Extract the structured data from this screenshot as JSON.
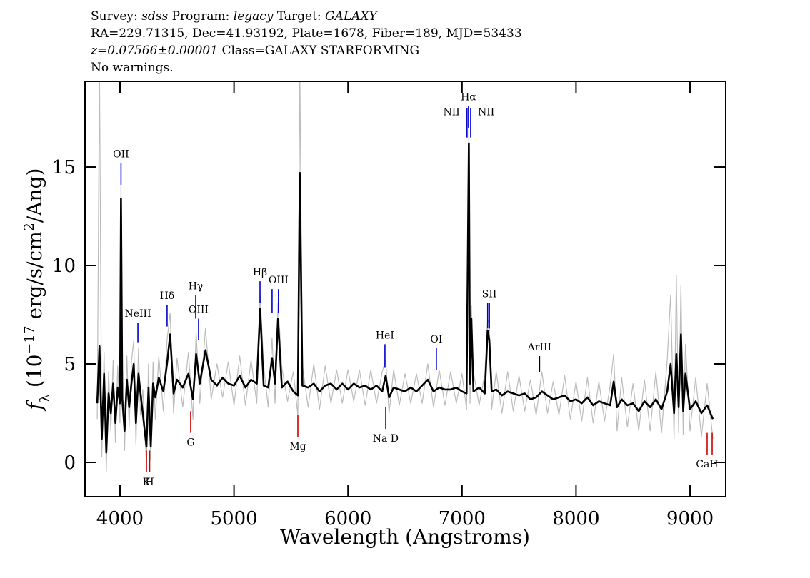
{
  "chart_data": {
    "type": "line",
    "header_lines": [
      [
        {
          "text": "Survey: "
        },
        {
          "text": "sdss",
          "italic": true
        },
        {
          "text": " Program: "
        },
        {
          "text": "legacy",
          "italic": true
        },
        {
          "text": " Target: "
        },
        {
          "text": "GALAXY",
          "italic": true
        }
      ],
      [
        {
          "text": "RA=229.71315, Dec=41.93192, Plate=1678, Fiber=189, MJD=53433"
        }
      ],
      [
        {
          "text": "z=0.07566±0.00001",
          "italic": true
        },
        {
          "text": " Class=GALAXY STARFORMING"
        }
      ],
      [
        {
          "text": "No warnings."
        }
      ]
    ],
    "x_label": "Wavelength (Angstroms)",
    "y_label": [
      {
        "text": "f",
        "italic": true
      },
      {
        "text": "λ",
        "sub": true
      },
      {
        "text": " (10"
      },
      {
        "text": "−17",
        "sup": true
      },
      {
        "text": " erg/s/cm"
      },
      {
        "text": "2",
        "sup": true
      },
      {
        "text": "/Ang)"
      }
    ],
    "xlim": [
      3693,
      9313
    ],
    "ylim": [
      -1.74,
      19.35
    ],
    "xticks": [
      4000,
      5000,
      6000,
      7000,
      8000,
      9000
    ],
    "yticks": [
      0,
      5,
      10,
      15
    ],
    "x": [
      3800,
      3820,
      3840,
      3860,
      3880,
      3900,
      3920,
      3940,
      3960,
      3980,
      4000,
      4009,
      4020,
      4040,
      4060,
      4080,
      4100,
      4120,
      4140,
      4162,
      4180,
      4200,
      4232,
      4250,
      4270,
      4290,
      4310,
      4340,
      4380,
      4412,
      4440,
      4470,
      4500,
      4550,
      4600,
      4640,
      4668,
      4700,
      4750,
      4800,
      4850,
      4900,
      4950,
      5000,
      5050,
      5100,
      5150,
      5200,
      5229,
      5260,
      5300,
      5334,
      5360,
      5386,
      5420,
      5470,
      5520,
      5560,
      5577,
      5600,
      5650,
      5700,
      5750,
      5800,
      5850,
      5900,
      5950,
      6000,
      6050,
      6100,
      6150,
      6200,
      6250,
      6300,
      6330,
      6360,
      6400,
      6450,
      6500,
      6550,
      6600,
      6650,
      6700,
      6750,
      6800,
      6850,
      6900,
      6950,
      7000,
      7040,
      7060,
      7070,
      7082,
      7100,
      7150,
      7200,
      7225,
      7240,
      7260,
      7300,
      7350,
      7400,
      7450,
      7500,
      7550,
      7600,
      7650,
      7700,
      7750,
      7800,
      7850,
      7900,
      7950,
      8000,
      8050,
      8100,
      8150,
      8200,
      8250,
      8300,
      8330,
      8360,
      8400,
      8450,
      8500,
      8550,
      8600,
      8650,
      8700,
      8750,
      8800,
      8830,
      8860,
      8880,
      8900,
      8920,
      8940,
      8960,
      9000,
      9050,
      9100,
      9150,
      9200
    ],
    "series": [
      {
        "color": "#bbbbbb",
        "values": [
          2.2,
          20,
          0.3,
          5.6,
          -0.5,
          4.6,
          1.6,
          5.2,
          1.0,
          4.9,
          2.0,
          14.2,
          4.4,
          0.6,
          5.4,
          1.8,
          5.1,
          6.2,
          0.9,
          5.8,
          2.4,
          3.7,
          0.0,
          5.0,
          0.1,
          5.1,
          2.2,
          5.4,
          2.6,
          6.2,
          7.6,
          2.5,
          5.3,
          2.8,
          5.6,
          2.2,
          6.6,
          3.0,
          6.8,
          3.2,
          5.0,
          3.3,
          5.1,
          2.9,
          5.4,
          2.9,
          5.2,
          3.0,
          8.6,
          4.9,
          2.8,
          6.3,
          3.0,
          8.1,
          4.8,
          3.1,
          4.6,
          2.4,
          20,
          4.9,
          2.8,
          5.0,
          2.7,
          4.9,
          3.0,
          4.7,
          3.0,
          4.7,
          3.1,
          4.7,
          2.9,
          4.7,
          3.0,
          4.6,
          5.2,
          2.5,
          4.7,
          2.9,
          4.5,
          3.0,
          4.5,
          3.0,
          5.0,
          2.8,
          4.7,
          2.9,
          4.6,
          3.0,
          4.5,
          2.7,
          17.0,
          3.0,
          8.0,
          4.6,
          2.9,
          4.5,
          7.3,
          7.0,
          2.7,
          4.6,
          2.5,
          4.6,
          2.6,
          4.4,
          2.6,
          4.2,
          2.4,
          4.6,
          2.5,
          4.1,
          2.4,
          4.4,
          2.2,
          4.1,
          2.1,
          4.3,
          2.0,
          4.1,
          2.1,
          3.9,
          5.5,
          1.6,
          4.3,
          1.8,
          4.0,
          1.6,
          4.2,
          1.6,
          4.6,
          1.5,
          5.2,
          8.5,
          1.2,
          9.5,
          1.5,
          9.0,
          1.4,
          6.0,
          1.6,
          4.3,
          1.3,
          4.0,
          1.2
        ]
      },
      {
        "color": "#000000",
        "values": [
          3.0,
          5.9,
          1.2,
          4.5,
          0.5,
          3.5,
          2.5,
          4.0,
          2.0,
          3.8,
          3.0,
          13.4,
          3.2,
          1.6,
          4.2,
          2.8,
          4.0,
          5.0,
          2.0,
          4.5,
          3.5,
          2.5,
          0.8,
          3.8,
          0.8,
          4.0,
          3.3,
          4.3,
          3.6,
          5.0,
          6.5,
          3.5,
          4.2,
          3.8,
          4.5,
          3.2,
          5.5,
          4.0,
          5.7,
          4.2,
          3.9,
          4.3,
          4.0,
          3.9,
          4.4,
          3.8,
          4.2,
          4.0,
          7.8,
          3.9,
          3.8,
          5.3,
          4.0,
          7.3,
          3.8,
          4.1,
          3.6,
          3.4,
          14.7,
          3.9,
          3.8,
          4.0,
          3.6,
          3.9,
          4.0,
          3.7,
          4.0,
          3.7,
          4.0,
          3.8,
          3.9,
          3.7,
          3.9,
          3.6,
          4.4,
          3.3,
          3.8,
          3.7,
          3.6,
          3.8,
          3.6,
          3.9,
          4.2,
          3.6,
          3.8,
          3.7,
          3.7,
          3.8,
          3.6,
          3.5,
          16.2,
          4.0,
          7.3,
          3.6,
          3.8,
          3.5,
          6.7,
          6.2,
          3.6,
          3.7,
          3.4,
          3.6,
          3.5,
          3.4,
          3.5,
          3.2,
          3.3,
          3.6,
          3.4,
          3.2,
          3.3,
          3.4,
          3.1,
          3.2,
          3.0,
          3.3,
          2.9,
          3.1,
          3.0,
          2.9,
          4.1,
          2.8,
          3.2,
          2.9,
          3.0,
          2.6,
          3.1,
          2.8,
          3.2,
          2.7,
          3.6,
          5.0,
          2.5,
          5.5,
          2.8,
          6.5,
          2.6,
          4.5,
          2.7,
          3.1,
          2.5,
          2.9,
          2.2
        ]
      }
    ],
    "annotations": [
      {
        "label": "OII",
        "x": 4009,
        "y": [
          14.1,
          15.2
        ],
        "color": "#0000cc",
        "side": "above"
      },
      {
        "label": "NeIII",
        "x": 4157,
        "y": [
          6.1,
          7.1
        ],
        "color": "#0000cc",
        "side": "above"
      },
      {
        "label": "Hδ",
        "x": 4413,
        "y": [
          6.9,
          8.0
        ],
        "color": "#0000cc",
        "side": "above"
      },
      {
        "label": "Hγ",
        "x": 4664,
        "y": [
          7.3,
          8.5
        ],
        "color": "#0000cc",
        "side": "above"
      },
      {
        "label": "OIII",
        "x": 4689,
        "y": [
          6.2,
          7.3
        ],
        "color": "#0000cc",
        "side": "above"
      },
      {
        "label": "Hβ",
        "x": 5228,
        "y": [
          8.1,
          9.2
        ],
        "color": "#0000cc",
        "side": "above"
      },
      {
        "x": 5334,
        "y": [
          7.6,
          8.8
        ],
        "color": "#0000cc",
        "side": "above"
      },
      {
        "label": "OIII",
        "x": 5390,
        "y": [
          7.6,
          8.8
        ],
        "color": "#0000cc",
        "side": "above"
      },
      {
        "label": "HeI",
        "x": 6324,
        "y": [
          4.8,
          6.0
        ],
        "color": "#0000cc",
        "side": "above"
      },
      {
        "label": "OI",
        "x": 6775,
        "y": [
          4.7,
          5.8
        ],
        "color": "#0000cc",
        "side": "above"
      },
      {
        "label": "NII",
        "x": 7044,
        "y": [
          16.5,
          18.0
        ],
        "color": "#0000cc",
        "side": "left"
      },
      {
        "label": "Hα",
        "x": 7057,
        "y": [
          17.0,
          18.1
        ],
        "color": "#0000cc",
        "side": "above"
      },
      {
        "label": "NII",
        "x": 7076,
        "y": [
          16.5,
          18.0
        ],
        "color": "#0000cc",
        "side": "right"
      },
      {
        "x": 7225,
        "y": [
          6.8,
          8.1
        ],
        "color": "#0000cc",
        "side": "above"
      },
      {
        "label": "SII",
        "x": 7240,
        "y": [
          6.8,
          8.1
        ],
        "color": "#0000cc",
        "side": "above"
      },
      {
        "label": "ArIII",
        "x": 7680,
        "y": [
          4.6,
          5.4
        ],
        "color": "#000000",
        "side": "above"
      },
      {
        "label": "K",
        "x": 4232,
        "y": [
          -0.5,
          0.6
        ],
        "color": "#cc0000",
        "side": "below"
      },
      {
        "label": "H",
        "x": 4260,
        "y": [
          -0.5,
          0.6
        ],
        "color": "#cc0000",
        "side": "below"
      },
      {
        "label": "G",
        "x": 4620,
        "y": [
          1.5,
          2.6
        ],
        "color": "#cc0000",
        "side": "below"
      },
      {
        "label": "Mg",
        "x": 5560,
        "y": [
          1.3,
          2.4
        ],
        "color": "#cc0000",
        "side": "below"
      },
      {
        "label": "Na D",
        "x": 6330,
        "y": [
          1.7,
          2.8
        ],
        "color": "#cc0000",
        "side": "below"
      },
      {
        "label": "CaH",
        "x": 9150,
        "y": [
          0.4,
          1.5
        ],
        "color": "#cc0000",
        "side": "below"
      },
      {
        "x": 9194,
        "y": [
          0.4,
          1.5
        ],
        "color": "#cc0000",
        "side": "below"
      }
    ]
  }
}
